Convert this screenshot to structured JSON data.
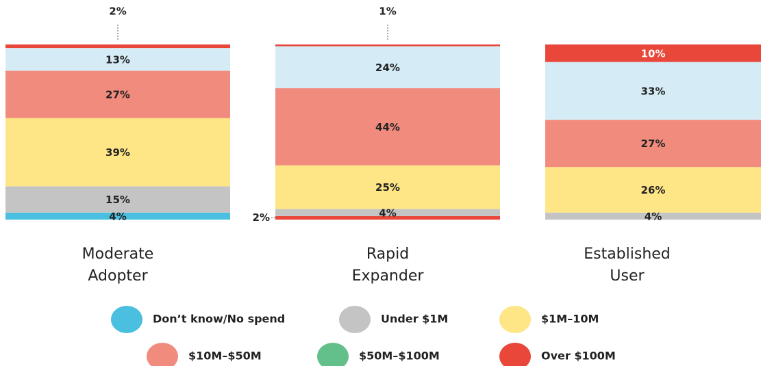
{
  "chart_data": {
    "type": "stacked_bar_100",
    "categories": [
      "Moderate Adopter",
      "Rapid Expander",
      "Established User"
    ],
    "series": [
      {
        "name": "Don’t know/No spend",
        "color": "#4bbfdf",
        "colors": [
          "#4bbfdf",
          "#e8473a",
          "#4bbfdf"
        ],
        "values": [
          4,
          2,
          null
        ],
        "value_labels": [
          "4%",
          "2%",
          null
        ]
      },
      {
        "name": "Under $1M",
        "color": "#c4c4c4",
        "values": [
          15,
          4,
          4
        ],
        "value_labels": [
          "15%",
          "4%",
          "4%"
        ]
      },
      {
        "name": "$1M–10M",
        "color": "#fee586",
        "values": [
          39,
          25,
          26
        ],
        "value_labels": [
          "39%",
          "25%",
          "26%"
        ]
      },
      {
        "name": "$10M–$50M",
        "color": "#f18b7e",
        "values": [
          27,
          44,
          27
        ],
        "value_labels": [
          "27%",
          "44%",
          "27%"
        ]
      },
      {
        "name": "$50M–$100M",
        "color": "#d5ecf6",
        "legend_color": "#63c08a",
        "values": [
          13,
          24,
          33
        ],
        "value_labels": [
          "13%",
          "24%",
          "33%"
        ]
      },
      {
        "name": "Over $100M",
        "color": "#e8473a",
        "values": [
          2,
          1,
          10
        ],
        "value_labels": [
          "2%",
          "1%",
          "10%"
        ]
      }
    ],
    "legend": "bottom"
  }
}
